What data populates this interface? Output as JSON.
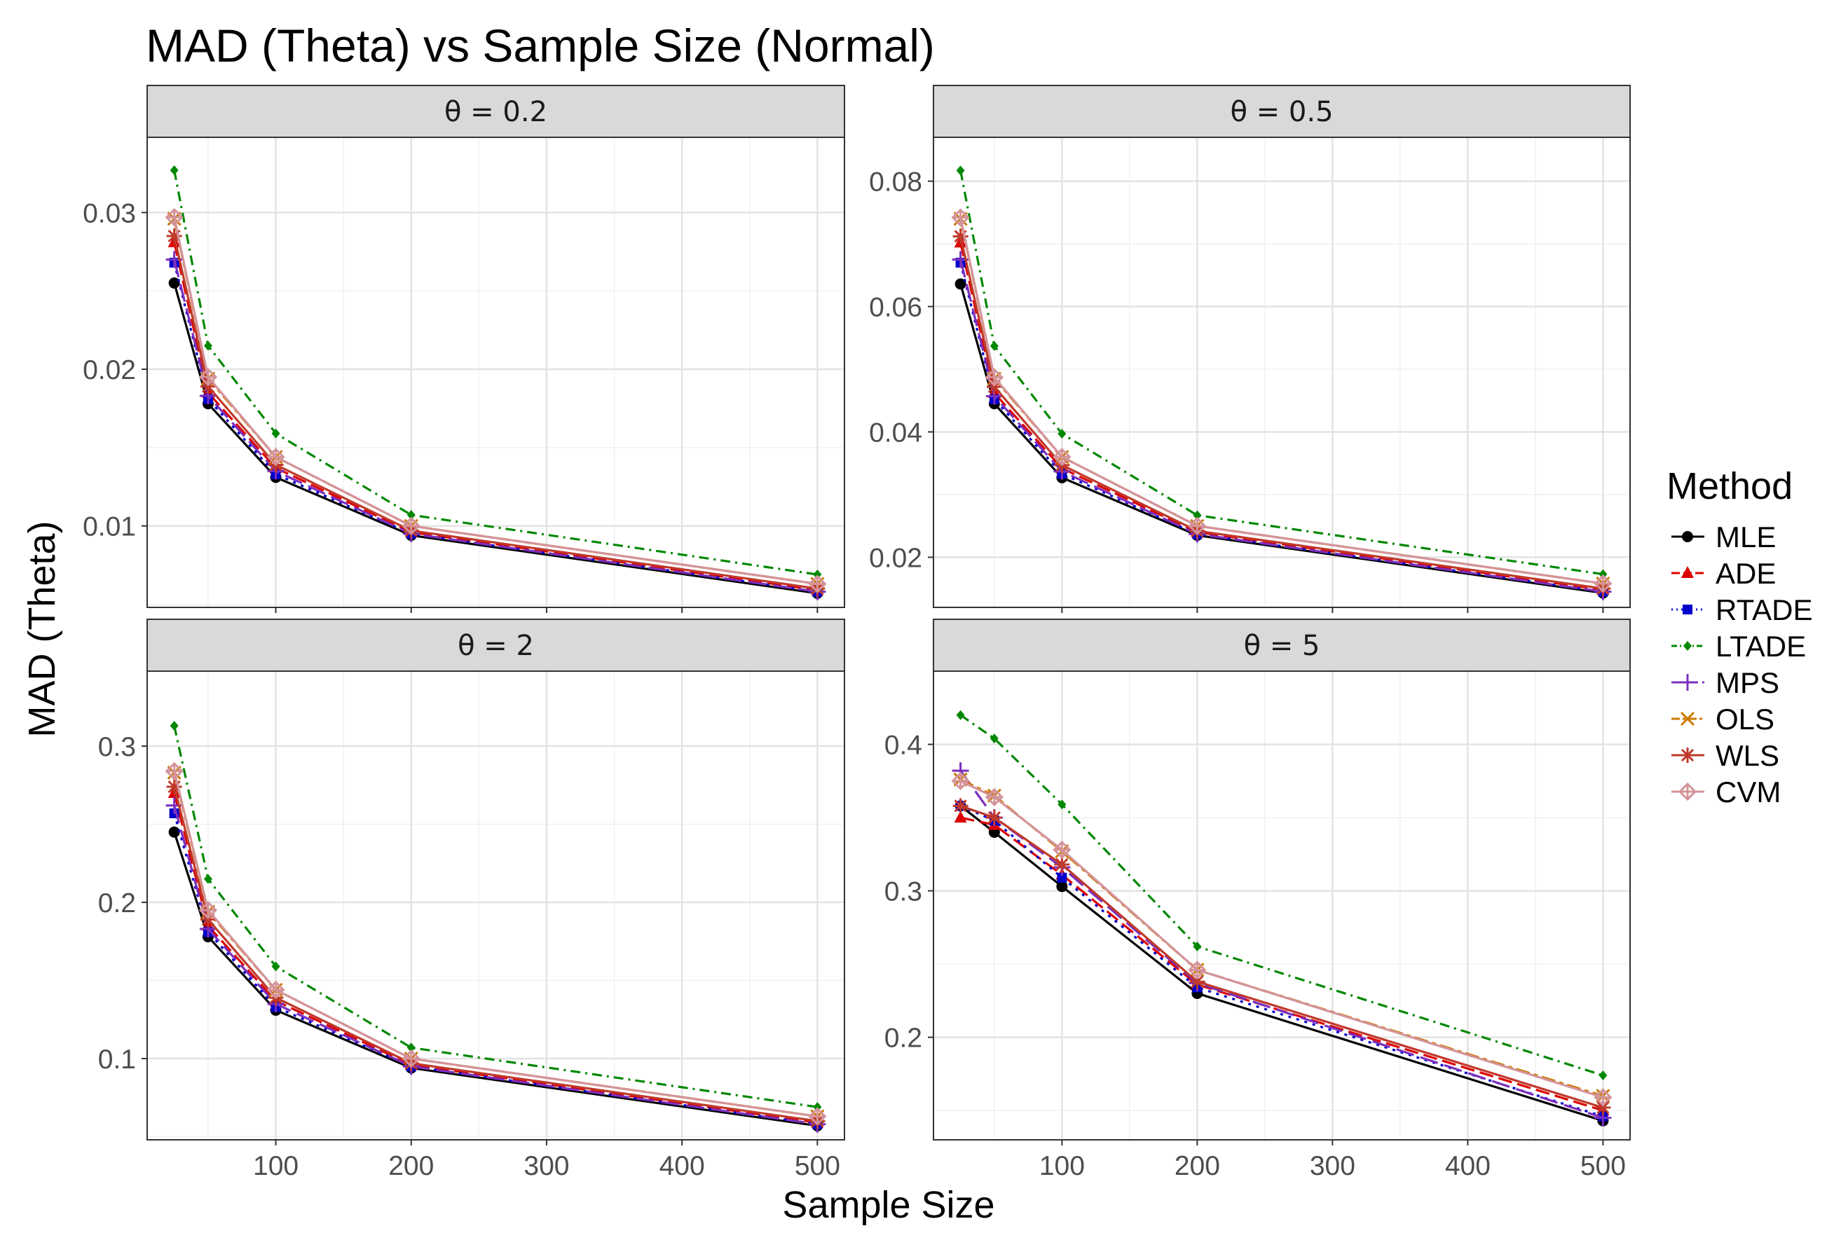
{
  "chart_data": {
    "type": "line",
    "title": "MAD (Theta) vs Sample Size (Normal)",
    "xlabel": "Sample Size",
    "ylabel": "MAD (Theta)",
    "x": [
      25,
      50,
      100,
      200,
      500
    ],
    "x_ticks": [
      100,
      200,
      300,
      400,
      500
    ],
    "xlim": [
      5,
      520
    ],
    "grid": true,
    "legend": {
      "title": "Method",
      "placement": "right"
    },
    "series_styles": [
      {
        "name": "MLE",
        "color": "#000000",
        "dash": "",
        "marker": "circle"
      },
      {
        "name": "ADE",
        "color": "#dd0000",
        "dash": "20,8",
        "marker": "triangle"
      },
      {
        "name": "RTADE",
        "color": "#0000cc",
        "dash": "4,8",
        "marker": "square"
      },
      {
        "name": "LTADE",
        "color": "#008800",
        "dash": "14,7,3,7",
        "marker": "diamond"
      },
      {
        "name": "MPS",
        "color": "#7b2fbe",
        "dash": "26,10",
        "marker": "plus"
      },
      {
        "name": "OLS",
        "color": "#cc7a00",
        "dash": "20,6,6,6",
        "marker": "x"
      },
      {
        "name": "WLS",
        "color": "#c0392b",
        "dash": "",
        "marker": "asterisk"
      },
      {
        "name": "CVM",
        "color": "#d4939a",
        "dash": "",
        "marker": "diamondplus"
      }
    ],
    "panels": [
      {
        "strip": "θ = 0.2",
        "ylim": [
          0.0048,
          0.0348
        ],
        "y_ticks": [
          0.01,
          0.02,
          0.03
        ],
        "y_tick_labels": [
          "0.01",
          "0.02",
          "0.03"
        ],
        "series": [
          {
            "name": "MLE",
            "values": [
              0.0255,
              0.0178,
              0.0131,
              0.0094,
              0.0057
            ]
          },
          {
            "name": "ADE",
            "values": [
              0.0281,
              0.0185,
              0.0137,
              0.0096,
              0.0059
            ]
          },
          {
            "name": "RTADE",
            "values": [
              0.0268,
              0.0181,
              0.0133,
              0.0095,
              0.0058
            ]
          },
          {
            "name": "LTADE",
            "values": [
              0.0327,
              0.0215,
              0.0159,
              0.0107,
              0.0069
            ]
          },
          {
            "name": "MPS",
            "values": [
              0.027,
              0.0183,
              0.0135,
              0.0095,
              0.0058
            ]
          },
          {
            "name": "OLS",
            "values": [
              0.0296,
              0.0194,
              0.0144,
              0.01,
              0.0063
            ]
          },
          {
            "name": "WLS",
            "values": [
              0.0285,
              0.0189,
              0.0139,
              0.0097,
              0.006
            ]
          },
          {
            "name": "CVM",
            "values": [
              0.0297,
              0.0195,
              0.0144,
              0.01,
              0.0063
            ]
          }
        ]
      },
      {
        "strip": "θ = 0.5",
        "ylim": [
          0.012,
          0.087
        ],
        "y_ticks": [
          0.02,
          0.04,
          0.06,
          0.08
        ],
        "y_tick_labels": [
          "0.02",
          "0.04",
          "0.06",
          "0.08"
        ],
        "series": [
          {
            "name": "MLE",
            "values": [
              0.0636,
              0.0445,
              0.0327,
              0.0235,
              0.0143
            ]
          },
          {
            "name": "ADE",
            "values": [
              0.0702,
              0.0462,
              0.0342,
              0.024,
              0.0148
            ]
          },
          {
            "name": "RTADE",
            "values": [
              0.067,
              0.0452,
              0.0333,
              0.0237,
              0.0145
            ]
          },
          {
            "name": "LTADE",
            "values": [
              0.0817,
              0.0537,
              0.0397,
              0.0267,
              0.0173
            ]
          },
          {
            "name": "MPS",
            "values": [
              0.0675,
              0.0457,
              0.0337,
              0.0237,
              0.0145
            ]
          },
          {
            "name": "OLS",
            "values": [
              0.074,
              0.0485,
              0.036,
              0.025,
              0.0158
            ]
          },
          {
            "name": "WLS",
            "values": [
              0.0712,
              0.0472,
              0.0347,
              0.0242,
              0.015
            ]
          },
          {
            "name": "CVM",
            "values": [
              0.0742,
              0.0487,
              0.036,
              0.025,
              0.0158
            ]
          }
        ]
      },
      {
        "strip": "θ = 2",
        "ylim": [
          0.048,
          0.348
        ],
        "y_ticks": [
          0.1,
          0.2,
          0.3
        ],
        "y_tick_labels": [
          "0.1",
          "0.2",
          "0.3"
        ],
        "series": [
          {
            "name": "MLE",
            "values": [
              0.245,
              0.178,
              0.131,
              0.094,
              0.057
            ]
          },
          {
            "name": "ADE",
            "values": [
              0.27,
              0.185,
              0.137,
              0.096,
              0.059
            ]
          },
          {
            "name": "RTADE",
            "values": [
              0.257,
              0.181,
              0.133,
              0.095,
              0.058
            ]
          },
          {
            "name": "LTADE",
            "values": [
              0.313,
              0.215,
              0.159,
              0.107,
              0.069
            ]
          },
          {
            "name": "MPS",
            "values": [
              0.262,
              0.183,
              0.135,
              0.095,
              0.058
            ]
          },
          {
            "name": "OLS",
            "values": [
              0.283,
              0.194,
              0.144,
              0.1,
              0.063
            ]
          },
          {
            "name": "WLS",
            "values": [
              0.274,
              0.189,
              0.139,
              0.097,
              0.06
            ]
          },
          {
            "name": "CVM",
            "values": [
              0.284,
              0.195,
              0.144,
              0.1,
              0.063
            ]
          }
        ]
      },
      {
        "strip": "θ = 5",
        "ylim": [
          0.13,
          0.45
        ],
        "y_ticks": [
          0.2,
          0.3,
          0.4
        ],
        "y_tick_labels": [
          "0.2",
          "0.3",
          "0.4"
        ],
        "series": [
          {
            "name": "MLE",
            "values": [
              0.358,
              0.34,
              0.303,
              0.23,
              0.143
            ]
          },
          {
            "name": "ADE",
            "values": [
              0.35,
              0.345,
              0.311,
              0.236,
              0.15
            ]
          },
          {
            "name": "RTADE",
            "values": [
              0.358,
              0.348,
              0.309,
              0.234,
              0.146
            ]
          },
          {
            "name": "LTADE",
            "values": [
              0.42,
              0.404,
              0.359,
              0.262,
              0.174
            ]
          },
          {
            "name": "MPS",
            "values": [
              0.382,
              0.35,
              0.316,
              0.237,
              0.145
            ]
          },
          {
            "name": "OLS",
            "values": [
              0.376,
              0.365,
              0.327,
              0.246,
              0.16
            ]
          },
          {
            "name": "WLS",
            "values": [
              0.358,
              0.35,
              0.318,
              0.238,
              0.152
            ]
          },
          {
            "name": "CVM",
            "values": [
              0.375,
              0.364,
              0.328,
              0.246,
              0.159
            ]
          }
        ]
      }
    ]
  }
}
